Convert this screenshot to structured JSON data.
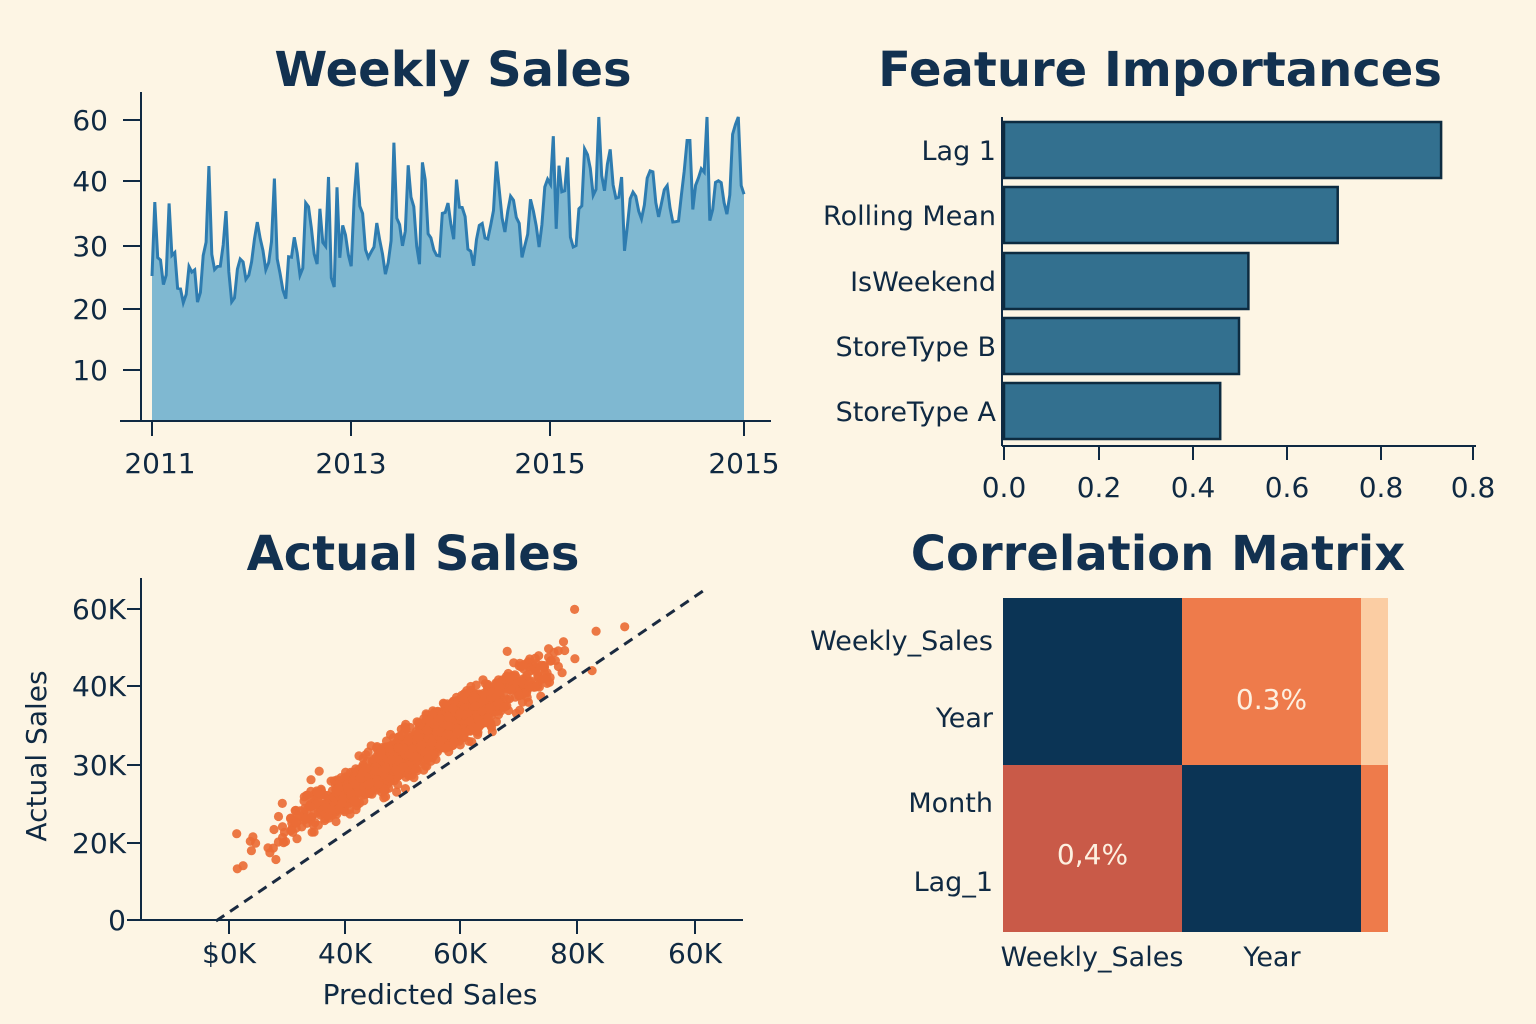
{
  "colors": {
    "background": "#fdf5e4",
    "text": "#0f2942",
    "area_fill": "#7fb8d1",
    "area_line": "#2e7cb0",
    "bar_fill": "#33708f",
    "scatter": "#ea6c36",
    "heat_dark": "#0b3455",
    "heat_orange": "#ee7b4b",
    "heat_red": "#c95a48",
    "heat_light": "#fbcda3"
  },
  "chart_data": [
    {
      "id": "weekly-sales",
      "type": "area",
      "title": "Weekly Sales",
      "xlabel": "",
      "ylabel": "",
      "x_ticks": [
        "2011",
        "2013",
        "2015",
        "2015"
      ],
      "y_ticks": [
        10,
        20,
        30,
        40,
        60
      ],
      "series_shape": "noisy weekly values rising from about 25 to about 40, peaks near 60",
      "points_per_year": 52,
      "y_start": 25,
      "y_end": 40
    },
    {
      "id": "feature-importances",
      "type": "bar",
      "orientation": "horizontal",
      "title": "Feature Importances",
      "categories": [
        "Lag 1",
        "Rolling Mean",
        "IsWeekend",
        "StoreType B",
        "StoreType A"
      ],
      "values": [
        0.93,
        0.71,
        0.52,
        0.5,
        0.46
      ],
      "x_ticks": [
        "0.0",
        "0.2",
        "0.4",
        "0.6",
        "0.8",
        "0.8"
      ],
      "xlim": [
        0,
        1.0
      ]
    },
    {
      "id": "actual-sales",
      "type": "scatter",
      "title": "Actual Sales",
      "xlabel": "Predicted Sales",
      "ylabel": "Actual Sales",
      "x_ticks": [
        "$0K",
        "40K",
        "60K",
        "80K",
        "60K"
      ],
      "y_ticks": [
        "0",
        "20K",
        "30K",
        "40K",
        "60K"
      ],
      "point_count": 1500,
      "trend": "strong positive correlation along dashed reference line"
    },
    {
      "id": "correlation-matrix",
      "type": "heatmap",
      "title": "Correlation Matrix",
      "row_labels": [
        "Weekly_Sales",
        "Year",
        "Month",
        "Lag_1"
      ],
      "col_labels": [
        "Weekly_Sales",
        "Year"
      ],
      "cells": [
        {
          "row": 0,
          "col": 0,
          "color": "heat_dark",
          "label": ""
        },
        {
          "row": 0,
          "col": 1,
          "color": "heat_orange",
          "label": "0.3%"
        },
        {
          "row": 1,
          "col": 0,
          "color": "heat_red",
          "label": "0,4%"
        },
        {
          "row": 1,
          "col": 1,
          "color": "heat_dark",
          "label": ""
        }
      ]
    }
  ]
}
